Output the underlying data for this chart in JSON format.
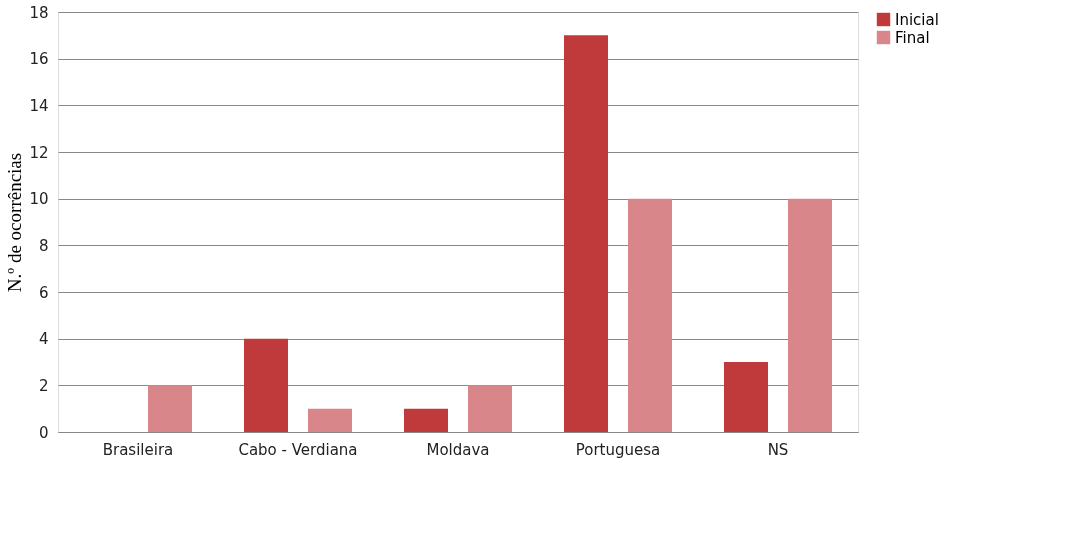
{
  "chart_data": {
    "type": "bar",
    "ylabel": "N.º de ocorrências",
    "categories": [
      "Brasileira",
      "Cabo - Verdiana",
      "Moldava",
      "Portuguesa",
      "NS"
    ],
    "series": [
      {
        "name": "Inicial",
        "color": "#c0393b",
        "values": [
          0,
          4,
          1,
          17,
          3
        ]
      },
      {
        "name": "Final",
        "color": "#d9868a",
        "values": [
          2,
          1,
          2,
          10,
          10
        ]
      }
    ],
    "ylim": [
      0,
      18
    ],
    "yticks": [
      0,
      2,
      4,
      6,
      8,
      10,
      12,
      14,
      16,
      18
    ],
    "grid": "y",
    "legend": "right"
  }
}
